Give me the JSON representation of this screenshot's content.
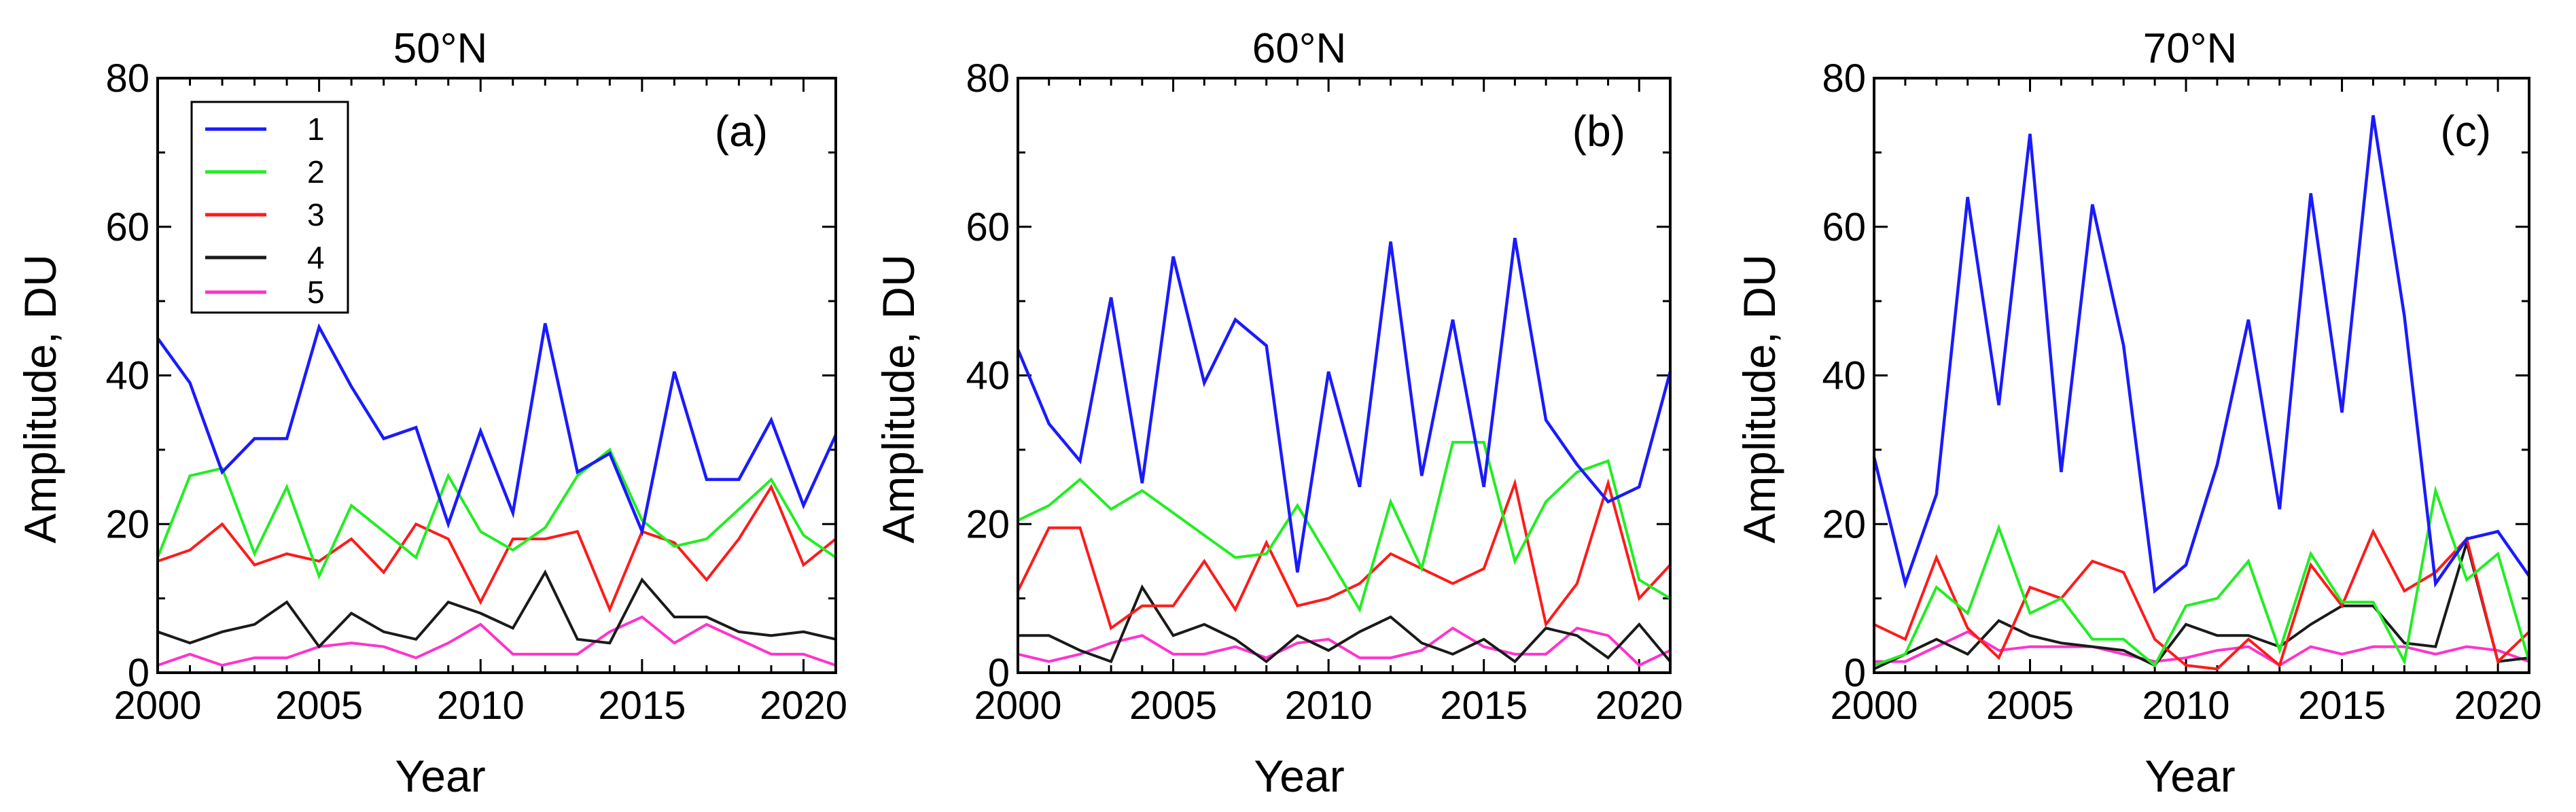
{
  "legend": {
    "entries": [
      {
        "label": "1",
        "color": "#1a1aff"
      },
      {
        "label": "2",
        "color": "#22ee22"
      },
      {
        "label": "3",
        "color": "#ff1a1a"
      },
      {
        "label": "4",
        "color": "#1a1a1a"
      },
      {
        "label": "5",
        "color": "#ff33cc"
      }
    ],
    "placement": "top-left of panel (a)"
  },
  "chart_data": [
    {
      "type": "line",
      "title": "50°N",
      "panel_label": "(a)",
      "xlabel": "Year",
      "ylabel": "Amplitude, DU",
      "xlim": [
        2000,
        2021
      ],
      "ylim": [
        0,
        80
      ],
      "xticks": [
        2000,
        2005,
        2010,
        2015,
        2020
      ],
      "yticks": [
        0,
        20,
        40,
        60,
        80
      ],
      "x": [
        2000,
        2001,
        2002,
        2003,
        2004,
        2005,
        2006,
        2007,
        2008,
        2009,
        2010,
        2011,
        2012,
        2013,
        2014,
        2015,
        2016,
        2017,
        2018,
        2019,
        2020,
        2021
      ],
      "series": [
        {
          "name": "1",
          "values": [
            45,
            39,
            27,
            31.5,
            31.5,
            46.5,
            38.5,
            31.5,
            33,
            20,
            32.5,
            21.5,
            47,
            27,
            29.5,
            19,
            40.5,
            26,
            26,
            34,
            22.5,
            32
          ]
        },
        {
          "name": "2",
          "values": [
            15.5,
            26.5,
            27.5,
            16,
            25,
            13,
            22.5,
            19,
            15.5,
            26.5,
            19,
            16.5,
            19.5,
            26.5,
            30,
            20.5,
            17,
            18,
            22,
            26,
            18.5,
            15.5
          ]
        },
        {
          "name": "3",
          "values": [
            15,
            16.5,
            20,
            14.5,
            16,
            15,
            18,
            13.5,
            20,
            18,
            9.5,
            18,
            18,
            19,
            8.5,
            19,
            17.5,
            12.5,
            18,
            25,
            14.5,
            18
          ]
        },
        {
          "name": "4",
          "values": [
            5.5,
            4,
            5.5,
            6.5,
            9.5,
            3.5,
            8,
            5.5,
            4.5,
            9.5,
            8,
            6,
            13.5,
            4.5,
            4,
            12.5,
            7.5,
            7.5,
            5.5,
            5,
            5.5,
            4.5
          ]
        },
        {
          "name": "5",
          "values": [
            1,
            2.5,
            1,
            2,
            2,
            3.5,
            4,
            3.5,
            2,
            4,
            6.5,
            2.5,
            2.5,
            2.5,
            5.5,
            7.5,
            4,
            6.5,
            4.5,
            2.5,
            2.5,
            1
          ]
        }
      ]
    },
    {
      "type": "line",
      "title": "60°N",
      "panel_label": "(b)",
      "xlabel": "Year",
      "ylabel": "Amplitude, DU",
      "xlim": [
        2000,
        2021
      ],
      "ylim": [
        0,
        80
      ],
      "xticks": [
        2000,
        2005,
        2010,
        2015,
        2020
      ],
      "yticks": [
        0,
        20,
        40,
        60,
        80
      ],
      "x": [
        2000,
        2001,
        2002,
        2003,
        2004,
        2005,
        2006,
        2007,
        2008,
        2009,
        2010,
        2011,
        2012,
        2013,
        2014,
        2015,
        2016,
        2017,
        2018,
        2019,
        2020,
        2021
      ],
      "series": [
        {
          "name": "1",
          "values": [
            43.5,
            33.5,
            28.5,
            50.5,
            25.5,
            56,
            39,
            47.5,
            44,
            13.5,
            40.5,
            25,
            58,
            26.5,
            47.5,
            25,
            58.5,
            34,
            28,
            23,
            25,
            40.5
          ]
        },
        {
          "name": "2",
          "values": [
            20.5,
            22.5,
            26,
            22,
            24.5,
            21.5,
            18.5,
            15.5,
            16,
            22.5,
            15.5,
            8.5,
            23,
            14,
            31,
            31,
            15,
            23,
            27,
            28.5,
            12.5,
            10
          ]
        },
        {
          "name": "3",
          "values": [
            11,
            19.5,
            19.5,
            6,
            9,
            9,
            15,
            8.5,
            17.5,
            9,
            10,
            12,
            16,
            14,
            12,
            14,
            25.5,
            6.5,
            12,
            25.5,
            10,
            14.5
          ]
        },
        {
          "name": "4",
          "values": [
            5,
            5,
            3,
            1.5,
            11.5,
            5,
            6.5,
            4.5,
            1.5,
            5,
            3,
            5.5,
            7.5,
            4,
            2.5,
            4.5,
            1.5,
            6,
            5,
            2,
            6.5,
            1.5
          ]
        },
        {
          "name": "5",
          "values": [
            2.5,
            1.5,
            2.5,
            4,
            5,
            2.5,
            2.5,
            3.5,
            2,
            4,
            4.5,
            2,
            2,
            3,
            6,
            3.5,
            2.5,
            2.5,
            6,
            5,
            1,
            3
          ]
        }
      ]
    },
    {
      "type": "line",
      "title": "70°N",
      "panel_label": "(c)",
      "xlabel": "Year",
      "ylabel": "Amplitude, DU",
      "xlim": [
        2000,
        2021
      ],
      "ylim": [
        0,
        80
      ],
      "xticks": [
        2000,
        2005,
        2010,
        2015,
        2020
      ],
      "yticks": [
        0,
        20,
        40,
        60,
        80
      ],
      "x": [
        2000,
        2001,
        2002,
        2003,
        2004,
        2005,
        2006,
        2007,
        2008,
        2009,
        2010,
        2011,
        2012,
        2013,
        2014,
        2015,
        2016,
        2017,
        2018,
        2019,
        2020,
        2021
      ],
      "series": [
        {
          "name": "1",
          "values": [
            29,
            12,
            24,
            64,
            36,
            72.5,
            27,
            63,
            44,
            11,
            14.5,
            28,
            47.5,
            22,
            64.5,
            35,
            75,
            48,
            12,
            18,
            19,
            13
          ]
        },
        {
          "name": "2",
          "values": [
            1,
            2.5,
            11.5,
            8,
            19.5,
            8,
            10,
            4.5,
            4.5,
            1,
            9,
            10,
            15,
            3,
            16,
            9.5,
            9.5,
            1.5,
            24.5,
            12.5,
            16,
            1.5
          ]
        },
        {
          "name": "3",
          "values": [
            6.5,
            4.5,
            15.5,
            6,
            2,
            11.5,
            10,
            15,
            13.5,
            4.5,
            1,
            0.5,
            4.5,
            1,
            14.5,
            9,
            19,
            11,
            13.5,
            18,
            1.5,
            5.5
          ]
        },
        {
          "name": "4",
          "values": [
            0.5,
            2.5,
            4.5,
            2.5,
            7,
            5,
            4,
            3.5,
            3,
            1,
            6.5,
            5,
            5,
            3.5,
            6.5,
            9,
            9,
            4,
            3.5,
            17.5,
            1.5,
            2
          ]
        },
        {
          "name": "5",
          "values": [
            1.5,
            1.5,
            3.5,
            5.5,
            3,
            3.5,
            3.5,
            3.5,
            2.5,
            1.5,
            2,
            3,
            3.5,
            1,
            3.5,
            2.5,
            3.5,
            3.5,
            2.5,
            3.5,
            3,
            1.5
          ]
        }
      ]
    }
  ]
}
